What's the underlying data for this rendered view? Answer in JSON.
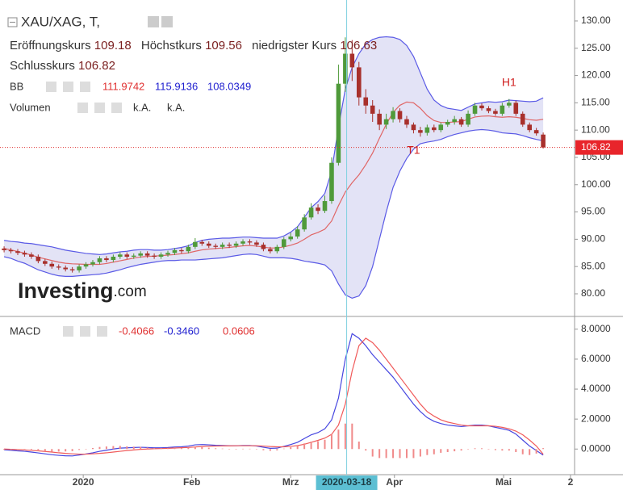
{
  "chart_data": [
    {
      "type": "candlestick",
      "title": "XAU/XAG, T,",
      "ohlc_labels": [
        "Eröffnungskurs",
        "Höchstkurs",
        "niedrigster Kurs",
        "Schlusskurs"
      ],
      "up_color": "#4f9a3a",
      "down_color": "#a8302c",
      "open": [
        88.3,
        88.0,
        87.8,
        87.5,
        87.2,
        86.8,
        86.0,
        85.5,
        85.0,
        84.8,
        84.5,
        84.3,
        85.0,
        85.4,
        85.8,
        86.5,
        86.2,
        86.8,
        87.2,
        86.8,
        87.0,
        87.4,
        87.0,
        86.8,
        87.2,
        87.5,
        88.0,
        87.8,
        88.6,
        89.5,
        89.2,
        88.8,
        88.6,
        89.0,
        88.8,
        89.2,
        89.6,
        89.4,
        89.0,
        88.2,
        87.8,
        88.6,
        90.0,
        90.5,
        91.8,
        94.0,
        95.8,
        95.2,
        97.0,
        104.0,
        118.5,
        124.0,
        121.5,
        116.0,
        114.5,
        113.0,
        111.0,
        112.0,
        113.5,
        112.0,
        111.0,
        110.0,
        109.5,
        110.5,
        110.0,
        111.0,
        111.5,
        112.0,
        111.0,
        113.0,
        114.5,
        114.0,
        113.5,
        113.0,
        114.5,
        115.0,
        113.0,
        111.0,
        110.0,
        109.18
      ],
      "high": [
        88.7,
        88.4,
        88.2,
        87.9,
        87.6,
        87.2,
        86.4,
        85.9,
        85.4,
        85.2,
        84.9,
        85.4,
        85.8,
        86.2,
        86.9,
        86.9,
        87.2,
        87.6,
        87.6,
        87.4,
        87.8,
        87.8,
        87.4,
        87.6,
        87.9,
        88.4,
        88.4,
        89.0,
        90.2,
        89.9,
        89.6,
        89.2,
        89.4,
        89.4,
        89.6,
        90.0,
        90.0,
        89.8,
        89.4,
        88.6,
        89.0,
        90.4,
        91.2,
        92.4,
        94.6,
        96.6,
        96.4,
        98.0,
        105.0,
        122.0,
        127.0,
        126.5,
        122.5,
        117.5,
        115.5,
        113.8,
        113.0,
        114.2,
        114.0,
        112.6,
        111.4,
        110.6,
        111.0,
        111.0,
        111.4,
        111.9,
        112.6,
        112.4,
        113.6,
        115.0,
        114.9,
        114.4,
        113.9,
        115.0,
        115.7,
        115.4,
        113.4,
        111.4,
        110.4,
        109.56
      ],
      "low": [
        87.6,
        87.4,
        87.1,
        86.8,
        86.4,
        85.6,
        85.1,
        84.6,
        84.4,
        84.1,
        83.9,
        83.9,
        84.6,
        85.0,
        85.4,
        85.8,
        85.8,
        86.4,
        86.4,
        86.4,
        86.6,
        86.6,
        86.4,
        86.4,
        86.8,
        87.1,
        87.4,
        87.4,
        88.2,
        88.8,
        88.4,
        88.2,
        88.2,
        88.4,
        88.4,
        88.8,
        89.0,
        88.6,
        87.8,
        87.4,
        87.4,
        88.2,
        89.6,
        90.1,
        91.4,
        93.6,
        94.6,
        94.8,
        96.5,
        103.5,
        117.0,
        119.0,
        114.5,
        113.0,
        111.5,
        110.0,
        110.2,
        111.4,
        111.4,
        110.4,
        109.4,
        108.8,
        109.0,
        109.6,
        109.6,
        110.6,
        111.0,
        110.6,
        110.6,
        112.6,
        113.6,
        113.1,
        112.6,
        112.6,
        114.1,
        112.6,
        110.6,
        109.6,
        109.0,
        106.63
      ],
      "close": [
        88.0,
        87.8,
        87.5,
        87.2,
        86.8,
        86.0,
        85.5,
        85.0,
        84.8,
        84.5,
        84.3,
        85.0,
        85.4,
        85.8,
        86.5,
        86.2,
        86.8,
        87.2,
        86.8,
        87.0,
        87.4,
        87.0,
        86.8,
        87.2,
        87.5,
        88.0,
        87.8,
        88.6,
        89.5,
        89.2,
        88.8,
        88.6,
        89.0,
        88.8,
        89.2,
        89.6,
        89.4,
        89.0,
        88.2,
        87.8,
        88.6,
        90.0,
        90.5,
        91.8,
        94.0,
        95.8,
        95.2,
        97.0,
        104.0,
        118.5,
        124.0,
        121.5,
        116.0,
        114.5,
        113.0,
        111.0,
        112.0,
        113.5,
        112.0,
        111.0,
        110.0,
        109.5,
        110.5,
        110.0,
        111.0,
        111.5,
        112.0,
        111.0,
        113.0,
        114.5,
        114.0,
        113.5,
        113.0,
        114.5,
        115.0,
        113.0,
        111.0,
        110.0,
        109.4,
        106.82
      ],
      "bollinger": {
        "name": "BB",
        "fill": "#e3e3f6",
        "series": [
          {
            "color": "#e06666",
            "values": [
              88.3,
              88.05,
              87.75,
              87.45,
              87.1,
              86.7,
              86.4,
              86.1,
              85.8,
              85.6,
              85.5,
              85.45,
              85.4,
              85.4,
              85.4,
              85.55,
              85.8,
              86.05,
              86.3,
              86.55,
              86.75,
              86.85,
              86.9,
              87.0,
              87.1,
              87.2,
              87.35,
              87.5,
              87.8,
              88.05,
              88.2,
              88.3,
              88.4,
              88.5,
              88.65,
              88.8,
              88.85,
              88.75,
              88.55,
              88.4,
              88.4,
              88.6,
              88.9,
              89.3,
              90.0,
              90.8,
              91.25,
              91.85,
              93.35,
              96.15,
              98.65,
              100.35,
              101.8,
              103.65,
              105.8,
              108.5,
              111.05,
              113.25,
              114.55,
              115.15,
              115.0,
              114.0,
              112.65,
              111.75,
              111.4,
              111.4,
              111.5,
              111.55,
              112.0,
              112.4,
              112.55,
              112.6,
              112.45,
              112.35,
              112.45,
              112.35,
              112.15,
              111.9,
              111.8,
              111.9742
            ]
          },
          {
            "color": "#5a5ae6",
            "values": [
              89.8,
              89.6,
              89.5,
              89.3,
              89.2,
              89.0,
              88.8,
              88.6,
              88.3,
              88.0,
              87.8,
              87.6,
              87.4,
              87.3,
              87.2,
              87.3,
              87.5,
              87.7,
              87.8,
              88.0,
              88.1,
              88.1,
              88.0,
              88.0,
              88.1,
              88.3,
              88.5,
              88.8,
              89.4,
              89.8,
              90.0,
              90.1,
              90.2,
              90.2,
              90.3,
              90.4,
              90.4,
              90.3,
              90.2,
              90.2,
              90.2,
              90.6,
              91.3,
              92.3,
              94.0,
              95.8,
              96.9,
              98.4,
              102.5,
              110.5,
              117.5,
              121.5,
              124.0,
              125.8,
              126.6,
              127.0,
              127.1,
              127.0,
              126.6,
              125.5,
              123.5,
              120.5,
              117.5,
              115.5,
              114.5,
              114.0,
              113.8,
              113.6,
              114.2,
              114.8,
              115.0,
              115.2,
              115.1,
              115.2,
              115.5,
              115.4,
              115.3,
              115.2,
              115.3,
              115.9136
            ]
          },
          {
            "color": "#5a5ae6",
            "values": [
              86.8,
              86.5,
              86.0,
              85.6,
              85.0,
              84.4,
              84.0,
              83.6,
              83.3,
              83.2,
              83.2,
              83.3,
              83.4,
              83.5,
              83.6,
              83.8,
              84.1,
              84.4,
              84.8,
              85.1,
              85.4,
              85.6,
              85.8,
              86.0,
              86.1,
              86.1,
              86.2,
              86.2,
              86.2,
              86.3,
              86.4,
              86.5,
              86.6,
              86.8,
              87.0,
              87.2,
              87.3,
              87.2,
              86.9,
              86.6,
              86.6,
              86.6,
              86.5,
              86.3,
              86.0,
              85.8,
              85.6,
              85.3,
              84.2,
              81.8,
              79.8,
              79.2,
              79.6,
              81.5,
              85.0,
              90.0,
              95.0,
              99.5,
              102.5,
              104.8,
              106.5,
              107.5,
              107.8,
              108.0,
              108.3,
              108.8,
              109.2,
              109.5,
              109.8,
              110.0,
              110.1,
              110.0,
              109.8,
              109.5,
              109.4,
              109.3,
              109.0,
              108.6,
              108.3,
              108.0349
            ]
          }
        ]
      },
      "volume": {
        "name": "Volumen",
        "labels": [
          "k.A.",
          "k.A."
        ]
      },
      "annotations": [
        {
          "text": "H1",
          "x": 74,
          "y": 118.6
        },
        {
          "text": "T1",
          "x": 60,
          "y": 106.2
        }
      ],
      "watermark": "Investing",
      "watermark_suffix": ".com",
      "ylim": [
        76.15,
        133.1
      ],
      "yticks": [
        {
          "value": 80,
          "label": "80.00"
        },
        {
          "value": 85,
          "label": "85.00"
        },
        {
          "value": 90,
          "label": "90.00"
        },
        {
          "value": 95,
          "label": "95.00"
        },
        {
          "value": 100,
          "label": "100.00"
        },
        {
          "value": 105,
          "label": "105.00"
        },
        {
          "value": 110,
          "label": "110.00"
        },
        {
          "value": 115,
          "label": "115.00"
        },
        {
          "value": 120,
          "label": "120.00"
        },
        {
          "value": 125,
          "label": "125.00"
        },
        {
          "value": 130,
          "label": "130.00"
        }
      ],
      "grid": true
    },
    {
      "type": "macd",
      "name": "MACD",
      "series": [
        {
          "color": "#4646e0",
          "values": [
            -0.05,
            -0.08,
            -0.12,
            -0.15,
            -0.2,
            -0.26,
            -0.32,
            -0.38,
            -0.42,
            -0.45,
            -0.46,
            -0.4,
            -0.33,
            -0.25,
            -0.15,
            -0.08,
            0.0,
            0.06,
            0.08,
            0.1,
            0.12,
            0.1,
            0.08,
            0.08,
            0.1,
            0.14,
            0.15,
            0.2,
            0.28,
            0.3,
            0.28,
            0.25,
            0.24,
            0.22,
            0.22,
            0.24,
            0.24,
            0.2,
            0.12,
            0.05,
            0.06,
            0.18,
            0.3,
            0.45,
            0.7,
            0.95,
            1.1,
            1.35,
            1.95,
            3.4,
            6.0,
            7.7,
            7.4,
            6.9,
            6.3,
            5.8,
            5.3,
            4.8,
            4.2,
            3.6,
            3.0,
            2.5,
            2.1,
            1.85,
            1.7,
            1.6,
            1.55,
            1.5,
            1.55,
            1.6,
            1.6,
            1.55,
            1.45,
            1.35,
            1.25,
            1.0,
            0.6,
            0.2,
            -0.1,
            -0.4066
          ]
        },
        {
          "color": "#f05a5a",
          "legend_label": "-0.3460",
          "values": [
            0.0,
            -0.02,
            -0.04,
            -0.06,
            -0.09,
            -0.12,
            -0.16,
            -0.2,
            -0.25,
            -0.29,
            -0.32,
            -0.34,
            -0.34,
            -0.32,
            -0.29,
            -0.25,
            -0.2,
            -0.15,
            -0.1,
            -0.06,
            -0.02,
            0.0,
            0.02,
            0.03,
            0.05,
            0.07,
            0.09,
            0.11,
            0.14,
            0.17,
            0.19,
            0.2,
            0.21,
            0.21,
            0.22,
            0.22,
            0.22,
            0.22,
            0.2,
            0.17,
            0.15,
            0.15,
            0.18,
            0.23,
            0.32,
            0.45,
            0.58,
            0.73,
            0.98,
            1.6,
            3.0,
            5.2,
            6.9,
            7.4,
            7.1,
            6.6,
            6.0,
            5.4,
            4.8,
            4.2,
            3.6,
            3.0,
            2.5,
            2.2,
            1.95,
            1.8,
            1.7,
            1.6,
            1.55,
            1.55,
            1.55,
            1.55,
            1.52,
            1.45,
            1.35,
            1.2,
            0.95,
            0.6,
            0.2,
            -0.346
          ]
        },
        {
          "color": "#f08a8a",
          "kind": "histogram",
          "values": [
            -0.05,
            -0.06,
            -0.08,
            -0.09,
            -0.11,
            -0.14,
            -0.16,
            -0.18,
            -0.17,
            -0.16,
            -0.14,
            -0.06,
            0.01,
            0.07,
            0.14,
            0.17,
            0.2,
            0.21,
            0.18,
            0.16,
            0.14,
            0.1,
            0.06,
            0.05,
            0.05,
            0.07,
            0.06,
            0.09,
            0.14,
            0.13,
            0.09,
            0.05,
            0.03,
            0.01,
            0.0,
            0.02,
            0.02,
            -0.02,
            -0.08,
            -0.12,
            -0.09,
            0.03,
            0.12,
            0.22,
            0.38,
            0.5,
            0.52,
            0.62,
            0.97,
            1.3,
            1.7,
            1.7,
            0.5,
            -0.1,
            -0.5,
            -0.6,
            -0.6,
            -0.6,
            -0.6,
            -0.6,
            -0.6,
            -0.5,
            -0.4,
            -0.35,
            -0.25,
            -0.2,
            -0.15,
            -0.1,
            0.0,
            0.05,
            0.05,
            0.0,
            -0.07,
            -0.1,
            -0.1,
            -0.2,
            -0.35,
            -0.4,
            -0.3,
            0.0606
          ]
        }
      ],
      "xlim": [
        -0.6,
        83.6
      ],
      "xticks": [
        {
          "value": 11.6,
          "label": "2020"
        },
        {
          "value": 27.5,
          "label": "Feb"
        },
        {
          "value": 42,
          "label": "Mrz"
        },
        {
          "value": 57.2,
          "label": "Apr"
        },
        {
          "value": 73.2,
          "label": "Mai"
        },
        {
          "value": 83,
          "label": "2"
        }
      ],
      "highlight": {
        "value": 50.2,
        "label": "2020-03-18"
      },
      "ylim": [
        -1.71,
        8.69
      ],
      "yticks": [
        {
          "value": 0,
          "label": "0.0000"
        },
        {
          "value": 2,
          "label": "2.0000"
        },
        {
          "value": 4,
          "label": "4.0000"
        },
        {
          "value": 6,
          "label": "6.0000"
        },
        {
          "value": 8,
          "label": "8.0000"
        }
      ],
      "grid": true
    }
  ]
}
